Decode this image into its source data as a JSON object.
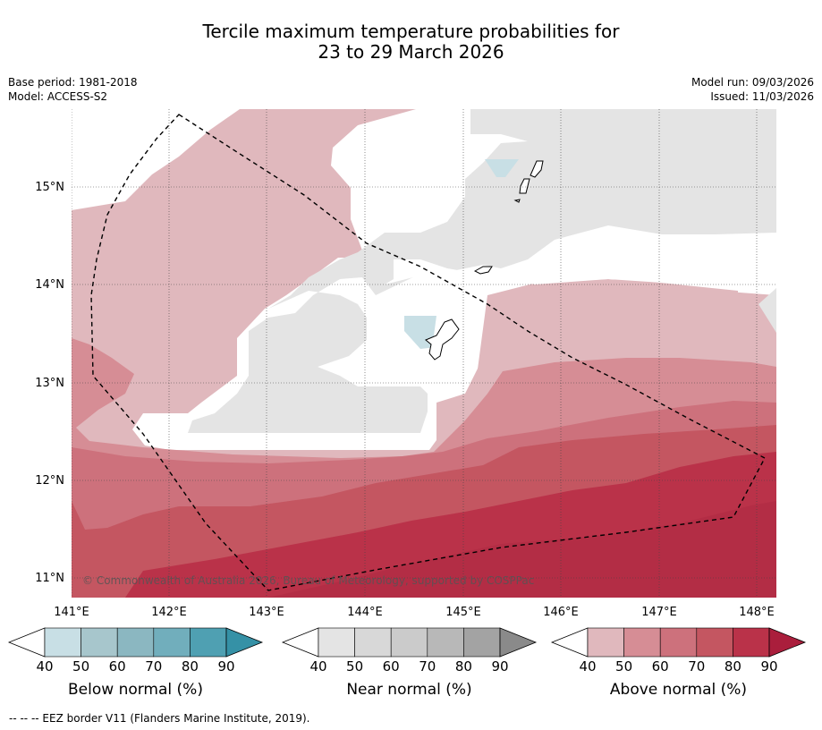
{
  "title": {
    "line1": "Tercile maximum temperature probabilities for",
    "line2": "23 to 29 March 2026"
  },
  "meta": {
    "base_period": "Base period: 1981-2018",
    "model": "Model: ACCESS-S2",
    "model_run": "Model run: 09/03/2026",
    "issued": "Issued: 11/03/2026"
  },
  "map": {
    "lon_labels": [
      "141°E",
      "142°E",
      "143°E",
      "144°E",
      "145°E",
      "146°E",
      "147°E",
      "148°E"
    ],
    "lat_labels": [
      "15°N",
      "14°N",
      "13°N",
      "12°N",
      "11°N"
    ],
    "copyright": "© Commonwealth of Australia 2026, Bureau of Meteorology, supported by COSPPac",
    "lon_range": [
      140.92,
      148.2
    ],
    "lat_range": [
      10.8,
      15.8
    ],
    "colors": {
      "white": "#ffffff",
      "near40": "#e4e4e4",
      "below40": "#c8dfe5",
      "above40": "#e0b8bd",
      "above50": "#d68d95",
      "above60": "#cd717c",
      "above70": "#c45661",
      "above80": "#ba3249"
    }
  },
  "colorbars": [
    {
      "id": "below",
      "title": "Below normal (%)",
      "ticks": [
        "40",
        "50",
        "60",
        "70",
        "80",
        "90"
      ],
      "colors": [
        "#c8dfe5",
        "#a7c6cc",
        "#8bb7c1",
        "#71aebc",
        "#4fa0b2",
        "#3591a6"
      ],
      "low_color": "#ffffff"
    },
    {
      "id": "near",
      "title": "Near normal (%)",
      "ticks": [
        "40",
        "50",
        "60",
        "70",
        "80",
        "90"
      ],
      "colors": [
        "#e4e4e4",
        "#d8d8d8",
        "#cbcbcb",
        "#b8b8b8",
        "#a3a3a3",
        "#8a8a8a"
      ],
      "low_color": "#ffffff"
    },
    {
      "id": "above",
      "title": "Above normal (%)",
      "ticks": [
        "40",
        "50",
        "60",
        "70",
        "80",
        "90"
      ],
      "colors": [
        "#e0b8bd",
        "#d68d95",
        "#cd717c",
        "#c45661",
        "#ba3249",
        "#aa1e3c"
      ],
      "low_color": "#ffffff"
    }
  ],
  "footer": "--  --  -- EEZ border V11 (Flanders Marine Institute, 2019)."
}
